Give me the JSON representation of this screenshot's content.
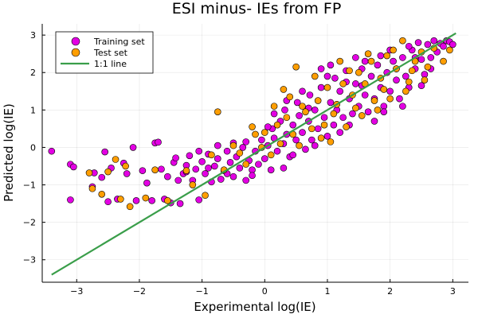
{
  "chart_data": {
    "type": "scatter",
    "title": "ESI minus- IEs from FP",
    "xlabel": "Experimental log(IE)",
    "ylabel": "Predicted log(IE)",
    "xlim": [
      -3.55,
      3.25
    ],
    "ylim": [
      -3.6,
      3.3
    ],
    "xticks": [
      -3,
      -2,
      -1,
      0,
      1,
      2,
      3
    ],
    "yticks": [
      -3,
      -2,
      -1,
      0,
      1,
      2,
      3
    ],
    "xtick_labels": [
      "−3",
      "−2",
      "−1",
      "0",
      "1",
      "2",
      "3"
    ],
    "ytick_labels": [
      "−3",
      "−2",
      "−1",
      "0",
      "1",
      "2",
      "3"
    ],
    "grid": true,
    "legend_position": "top-left",
    "colors": {
      "training": "#e300e3",
      "test": "#ff9e00",
      "line": "#3a9e4a"
    },
    "series": [
      {
        "name": "Training set",
        "kind": "scatter",
        "points": [
          [
            -3.4,
            -0.1
          ],
          [
            -3.1,
            -0.45
          ],
          [
            -3.05,
            -0.52
          ],
          [
            -3.1,
            -1.4
          ],
          [
            -2.75,
            -1.05
          ],
          [
            -2.72,
            -0.68
          ],
          [
            -2.6,
            -0.8
          ],
          [
            -2.55,
            -0.12
          ],
          [
            -2.5,
            -1.45
          ],
          [
            -2.45,
            -0.55
          ],
          [
            -2.35,
            -1.38
          ],
          [
            -2.25,
            -0.42
          ],
          [
            -2.2,
            -0.7
          ],
          [
            -2.1,
            0.0
          ],
          [
            -2.05,
            -1.42
          ],
          [
            -1.95,
            -0.62
          ],
          [
            -1.88,
            -0.95
          ],
          [
            -1.8,
            -1.42
          ],
          [
            -1.75,
            0.12
          ],
          [
            -1.7,
            0.14
          ],
          [
            -1.65,
            -0.58
          ],
          [
            -1.6,
            -1.38
          ],
          [
            -1.55,
            -0.78
          ],
          [
            -1.5,
            -1.48
          ],
          [
            -1.45,
            -0.4
          ],
          [
            -1.42,
            -0.28
          ],
          [
            -1.38,
            -0.88
          ],
          [
            -1.35,
            -1.5
          ],
          [
            -1.3,
            -0.7
          ],
          [
            -1.25,
            -0.48
          ],
          [
            -1.2,
            -0.22
          ],
          [
            -1.15,
            -0.88
          ],
          [
            -1.1,
            -0.58
          ],
          [
            -1.05,
            -1.4
          ],
          [
            -1.0,
            -0.38
          ],
          [
            -0.95,
            -0.7
          ],
          [
            -0.9,
            -0.18
          ],
          [
            -0.85,
            -0.92
          ],
          [
            -0.8,
            -0.5
          ],
          [
            -0.75,
            -0.3
          ],
          [
            -0.7,
            -0.85
          ],
          [
            -0.65,
            -0.62
          ],
          [
            -0.6,
            -0.1
          ],
          [
            -0.55,
            -0.4
          ],
          [
            -0.5,
            -0.78
          ],
          [
            -0.45,
            -0.25
          ],
          [
            -0.4,
            -0.55
          ],
          [
            -0.35,
            0.0
          ],
          [
            -0.3,
            -0.88
          ],
          [
            -0.25,
            -0.35
          ],
          [
            -0.2,
            -0.6
          ],
          [
            -0.15,
            -0.1
          ],
          [
            -0.1,
            -0.45
          ],
          [
            -0.05,
            0.2
          ],
          [
            0.0,
            -0.3
          ],
          [
            0.05,
            0.05
          ],
          [
            0.1,
            -0.6
          ],
          [
            0.12,
            0.5
          ],
          [
            0.15,
            0.25
          ],
          [
            0.2,
            -0.1
          ],
          [
            0.25,
            0.7
          ],
          [
            0.3,
            0.1
          ],
          [
            0.32,
            1.0
          ],
          [
            0.35,
            0.35
          ],
          [
            0.4,
            -0.25
          ],
          [
            0.45,
            0.6
          ],
          [
            0.5,
            0.2
          ],
          [
            0.52,
            1.2
          ],
          [
            0.55,
            0.85
          ],
          [
            0.6,
            0.4
          ],
          [
            0.65,
            -0.05
          ],
          [
            0.7,
            0.7
          ],
          [
            0.72,
            1.4
          ],
          [
            0.75,
            0.2
          ],
          [
            0.8,
            1.0
          ],
          [
            0.85,
            0.5
          ],
          [
            0.9,
            1.6
          ],
          [
            0.95,
            0.8
          ],
          [
            1.0,
            0.3
          ],
          [
            1.05,
            1.2
          ],
          [
            1.1,
            0.6
          ],
          [
            1.12,
            1.85
          ],
          [
            1.15,
            1.0
          ],
          [
            1.2,
            1.5
          ],
          [
            1.25,
            0.8
          ],
          [
            1.3,
            2.05
          ],
          [
            1.35,
            1.3
          ],
          [
            1.4,
            0.9
          ],
          [
            1.45,
            1.7
          ],
          [
            1.5,
            1.1
          ],
          [
            1.55,
            2.1
          ],
          [
            1.6,
            1.4
          ],
          [
            1.65,
            0.95
          ],
          [
            1.7,
            1.9
          ],
          [
            1.75,
            1.3
          ],
          [
            1.8,
            2.2
          ],
          [
            1.85,
            1.6
          ],
          [
            1.9,
            1.1
          ],
          [
            1.95,
            2.0
          ],
          [
            2.0,
            1.5
          ],
          [
            2.05,
            2.3
          ],
          [
            2.1,
            1.8
          ],
          [
            2.15,
            1.3
          ],
          [
            2.2,
            2.4
          ],
          [
            2.25,
            1.9
          ],
          [
            2.3,
            1.6
          ],
          [
            2.35,
            2.6
          ],
          [
            2.4,
            2.1
          ],
          [
            2.45,
            2.8
          ],
          [
            2.5,
            2.35
          ],
          [
            2.55,
            1.95
          ],
          [
            2.6,
            2.75
          ],
          [
            2.65,
            2.4
          ],
          [
            2.7,
            2.85
          ],
          [
            2.75,
            2.55
          ],
          [
            2.8,
            2.78
          ],
          [
            2.85,
            2.7
          ],
          [
            2.9,
            2.85
          ],
          [
            2.95,
            2.82
          ],
          [
            3.0,
            2.75
          ],
          [
            -0.2,
            -0.75
          ],
          [
            0.3,
            -0.55
          ],
          [
            0.6,
            1.5
          ],
          [
            0.9,
            2.1
          ],
          [
            1.2,
            0.4
          ],
          [
            1.45,
            2.4
          ],
          [
            1.75,
            0.7
          ],
          [
            2.0,
            2.6
          ],
          [
            2.3,
            2.7
          ],
          [
            0.45,
            -0.2
          ],
          [
            0.8,
            0.05
          ],
          [
            1.0,
            1.9
          ],
          [
            1.35,
            0.6
          ],
          [
            1.6,
            2.3
          ],
          [
            1.9,
            0.95
          ],
          [
            2.2,
            1.1
          ],
          [
            2.5,
            1.65
          ],
          [
            0.15,
            0.9
          ],
          [
            -0.3,
            0.15
          ],
          [
            -0.6,
            -0.7
          ],
          [
            -0.9,
            -0.55
          ],
          [
            -1.05,
            -0.1
          ],
          [
            -1.25,
            -0.65
          ],
          [
            -0.75,
            0.05
          ],
          [
            -0.5,
            0.12
          ],
          [
            0.05,
            0.55
          ],
          [
            0.35,
            1.25
          ],
          [
            0.7,
            1.05
          ],
          [
            1.05,
            2.2
          ],
          [
            1.3,
            1.75
          ],
          [
            1.55,
            1.65
          ],
          [
            1.85,
            2.45
          ],
          [
            2.1,
            2.1
          ],
          [
            2.4,
            2.4
          ],
          [
            2.65,
            2.1
          ]
        ]
      },
      {
        "name": "Test set",
        "kind": "scatter",
        "points": [
          [
            -2.8,
            -0.68
          ],
          [
            -2.75,
            -1.1
          ],
          [
            -2.6,
            -1.25
          ],
          [
            -2.5,
            -0.65
          ],
          [
            -2.38,
            -0.32
          ],
          [
            -2.3,
            -1.38
          ],
          [
            -2.22,
            -0.5
          ],
          [
            -2.15,
            -1.58
          ],
          [
            -1.9,
            -1.35
          ],
          [
            -1.75,
            -0.6
          ],
          [
            -1.55,
            -1.42
          ],
          [
            -1.25,
            -0.62
          ],
          [
            -1.15,
            -1.0
          ],
          [
            -0.95,
            -1.28
          ],
          [
            -0.85,
            -0.2
          ],
          [
            -0.75,
            0.95
          ],
          [
            -0.65,
            -0.6
          ],
          [
            -0.5,
            0.05
          ],
          [
            -0.4,
            -0.15
          ],
          [
            -0.3,
            -0.45
          ],
          [
            -0.15,
            0.35
          ],
          [
            -0.05,
            0.0
          ],
          [
            0.0,
            0.4
          ],
          [
            0.1,
            -0.2
          ],
          [
            0.2,
            0.6
          ],
          [
            0.25,
            0.1
          ],
          [
            0.35,
            0.8
          ],
          [
            0.45,
            0.35
          ],
          [
            0.5,
            2.15
          ],
          [
            0.55,
            0.05
          ],
          [
            0.65,
            0.95
          ],
          [
            0.75,
            0.5
          ],
          [
            0.85,
            1.25
          ],
          [
            0.95,
            0.6
          ],
          [
            1.0,
            1.6
          ],
          [
            1.05,
            0.15
          ],
          [
            1.15,
            1.15
          ],
          [
            1.25,
            1.7
          ],
          [
            1.3,
            0.55
          ],
          [
            1.4,
            1.4
          ],
          [
            1.5,
            2.0
          ],
          [
            1.55,
            0.85
          ],
          [
            1.6,
            1.7
          ],
          [
            1.7,
            2.3
          ],
          [
            1.75,
            1.25
          ],
          [
            1.85,
            1.85
          ],
          [
            1.95,
            2.45
          ],
          [
            2.0,
            1.3
          ],
          [
            2.1,
            2.1
          ],
          [
            2.2,
            2.85
          ],
          [
            2.3,
            1.75
          ],
          [
            2.4,
            2.3
          ],
          [
            2.5,
            2.55
          ],
          [
            2.6,
            2.15
          ],
          [
            2.7,
            2.65
          ],
          [
            2.85,
            2.3
          ],
          [
            2.95,
            2.6
          ],
          [
            0.3,
            1.55
          ],
          [
            0.8,
            1.9
          ],
          [
            1.2,
            2.3
          ],
          [
            1.65,
            2.5
          ],
          [
            2.05,
            2.6
          ],
          [
            0.6,
            1.1
          ],
          [
            1.1,
            0.9
          ],
          [
            1.45,
            1.05
          ],
          [
            1.9,
            1.55
          ],
          [
            2.25,
            1.5
          ],
          [
            2.55,
            1.8
          ],
          [
            -0.2,
            0.55
          ],
          [
            0.15,
            1.1
          ],
          [
            0.4,
            1.35
          ],
          [
            0.9,
            0.25
          ],
          [
            1.35,
            2.05
          ],
          [
            1.8,
            1.0
          ],
          [
            2.35,
            2.05
          ]
        ]
      },
      {
        "name": "1:1 line",
        "kind": "line",
        "x": [
          -3.4,
          3.05
        ],
        "y": [
          -3.4,
          3.05
        ]
      }
    ]
  }
}
